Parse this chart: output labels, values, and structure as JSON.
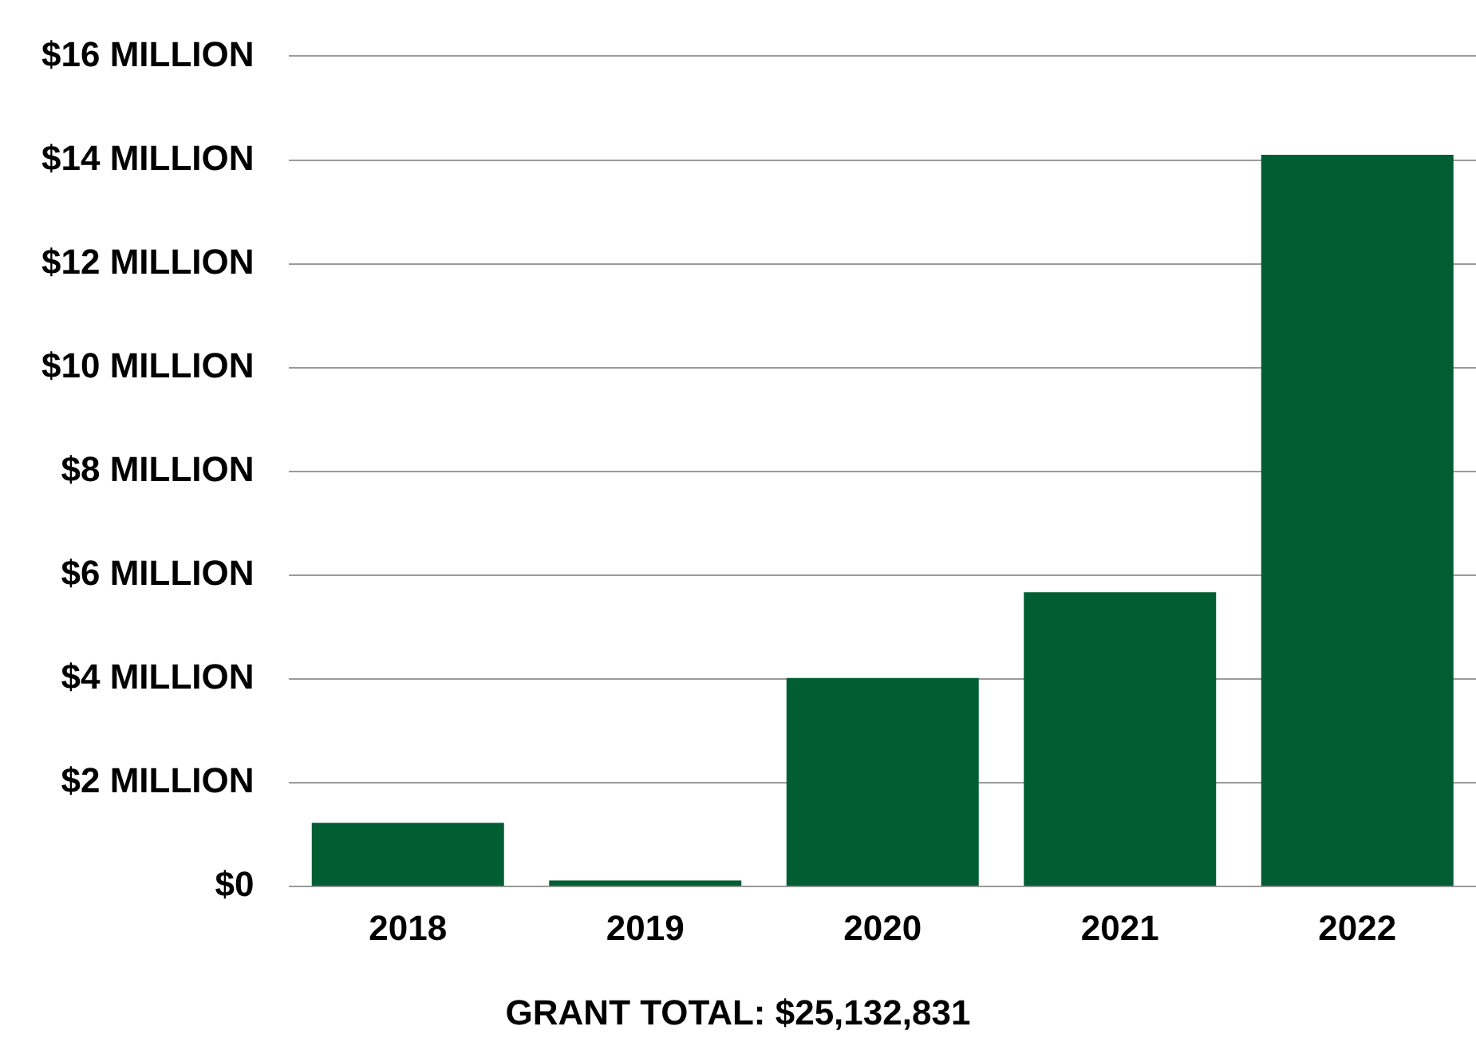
{
  "chart_data": {
    "type": "bar",
    "categories": [
      "2018",
      "2019",
      "2020",
      "2021",
      "2022"
    ],
    "values": [
      1.23,
      0.12,
      4.02,
      5.67,
      14.1
    ],
    "color": "#005e32",
    "ylim": [
      0,
      16
    ],
    "yticks": [
      {
        "value": 0,
        "label": "$0"
      },
      {
        "value": 2,
        "label": "$2 MILLION"
      },
      {
        "value": 4,
        "label": "$4 MILLION"
      },
      {
        "value": 6,
        "label": "$6 MILLION"
      },
      {
        "value": 8,
        "label": "$8 MILLION"
      },
      {
        "value": 10,
        "label": "$10 MILLION"
      },
      {
        "value": 12,
        "label": "$12 MILLION"
      },
      {
        "value": 14,
        "label": "$14 MILLION"
      },
      {
        "value": 16,
        "label": "$16 MILLION"
      }
    ],
    "grid": "y",
    "legend": false,
    "annotations": [
      "GRANT TOTAL: $25,132,831"
    ]
  }
}
